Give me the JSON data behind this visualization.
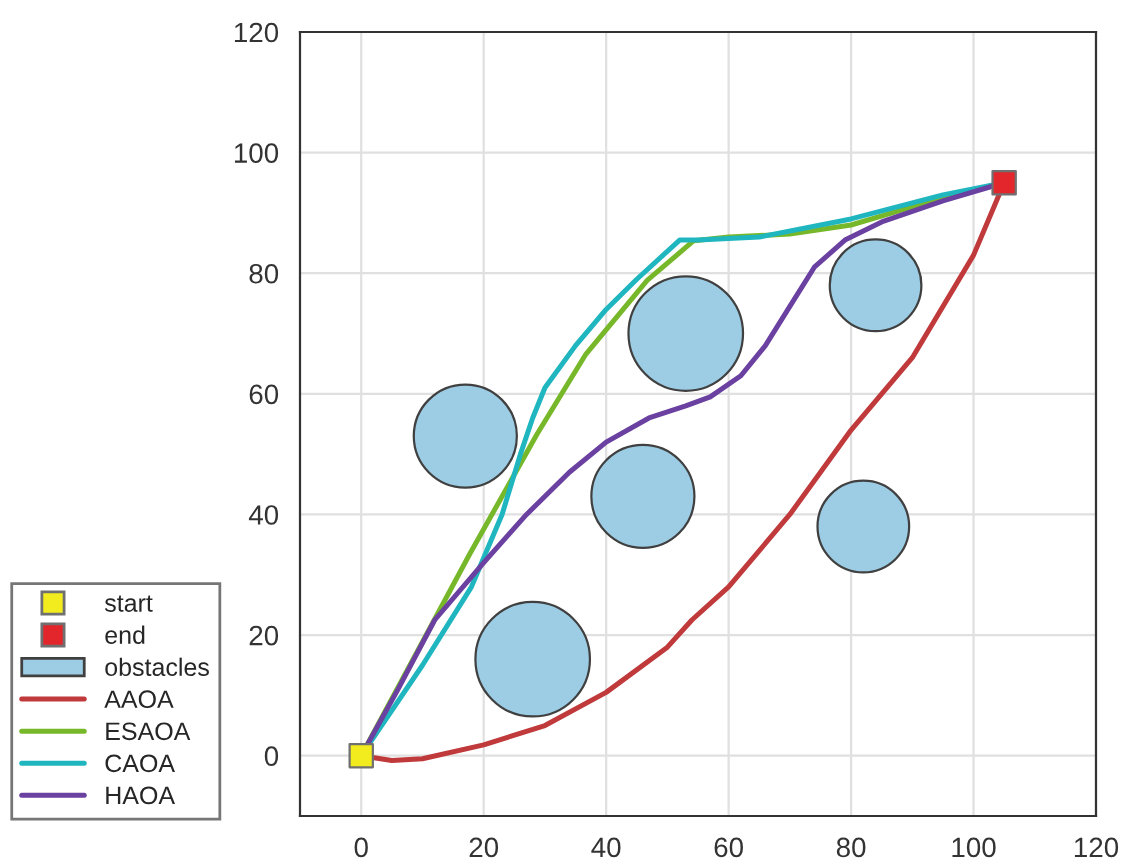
{
  "chart_data": {
    "type": "line",
    "xlim": [
      -10,
      120
    ],
    "ylim": [
      -10,
      120
    ],
    "xticks": [
      0,
      20,
      40,
      60,
      80,
      100,
      120
    ],
    "yticks": [
      0,
      20,
      40,
      60,
      80,
      100,
      120
    ],
    "grid": true,
    "legend": "left",
    "series": [
      {
        "name": "start",
        "type": "scatter",
        "marker": "square",
        "color": "#f2ec1e",
        "x": [
          0
        ],
        "values": [
          0
        ]
      },
      {
        "name": "end",
        "type": "scatter",
        "marker": "square",
        "color": "#e3262b",
        "x": [
          105
        ],
        "values": [
          95
        ]
      },
      {
        "name": "obstacles",
        "type": "bubble",
        "color": "#9ccde5",
        "x": [
          17,
          28,
          46,
          53,
          82,
          84
        ],
        "values": [
          53,
          16,
          43,
          70,
          38,
          78
        ],
        "sizes": [
          0.81,
          1,
          0.81,
          1,
          0.64,
          0.64
        ]
      },
      {
        "name": "AAOA",
        "color": "#c0393b",
        "x": [
          0,
          5,
          10,
          20,
          30,
          40,
          50,
          54,
          60,
          70,
          75,
          80,
          90,
          100,
          105
        ],
        "values": [
          0,
          -0.8,
          -0.5,
          1.8,
          5,
          10.5,
          18,
          22.5,
          28,
          40,
          47,
          54,
          66,
          83,
          95
        ]
      },
      {
        "name": "ESAOA",
        "color": "#77b82a",
        "x": [
          0,
          17.7,
          28.7,
          36.7,
          46.7,
          54.3,
          60,
          70,
          80,
          90,
          105
        ],
        "values": [
          0,
          33.4,
          53.3,
          66.6,
          78.8,
          85.4,
          86,
          86.5,
          88,
          91,
          95
        ]
      },
      {
        "name": "CAOA",
        "color": "#1fb6bf",
        "x": [
          0,
          10,
          18,
          23,
          26,
          28,
          30,
          35,
          40,
          45,
          52,
          55,
          65,
          80,
          95,
          105
        ],
        "values": [
          0,
          15,
          28,
          40,
          50,
          56,
          61,
          68,
          74,
          79,
          85.5,
          85.5,
          86,
          89,
          93,
          95
        ]
      },
      {
        "name": "HAOA",
        "color": "#6a40a0",
        "x": [
          0,
          6,
          12,
          20,
          27,
          34,
          40,
          47,
          53,
          57,
          62,
          66,
          70,
          74,
          79,
          85,
          95,
          105
        ],
        "values": [
          0,
          11,
          22.5,
          32,
          40,
          47,
          52,
          56,
          58,
          59.5,
          63,
          68,
          74.5,
          81,
          85.5,
          88.5,
          92,
          95
        ]
      }
    ]
  }
}
